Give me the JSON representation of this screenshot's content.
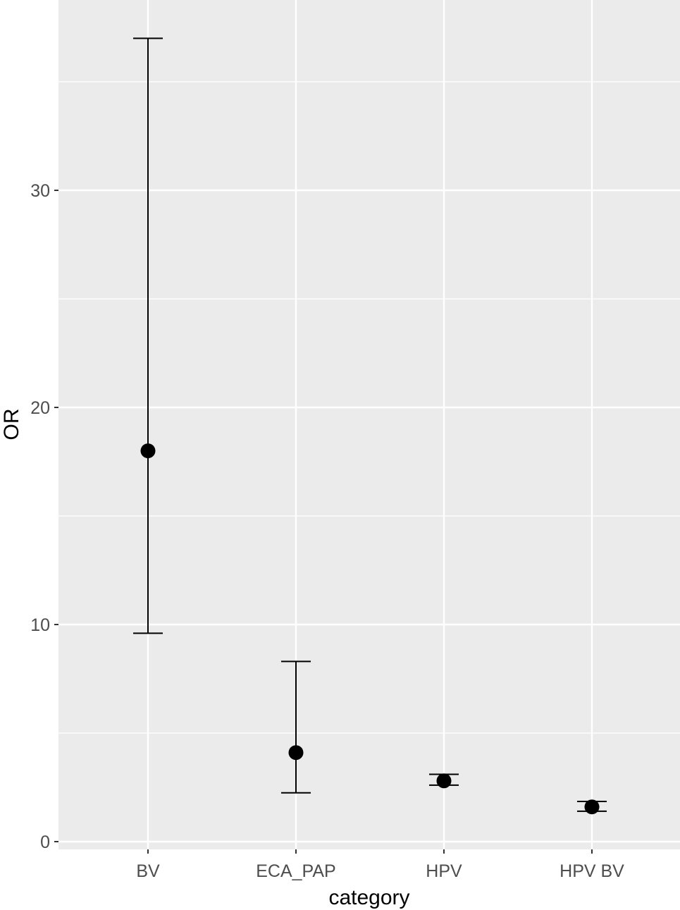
{
  "chart_data": {
    "type": "errorbar",
    "xlabel": "category",
    "ylabel": "OR",
    "categories": [
      "BV",
      "ECA_PAP",
      "HPV",
      "HPV BV"
    ],
    "points": [
      {
        "category": "BV",
        "estimate": 18.0,
        "lower": 9.6,
        "upper": 37.0
      },
      {
        "category": "ECA_PAP",
        "estimate": 4.1,
        "lower": 2.25,
        "upper": 8.3
      },
      {
        "category": "HPV",
        "estimate": 2.8,
        "lower": 2.6,
        "upper": 3.1
      },
      {
        "category": "HPV BV",
        "estimate": 1.6,
        "lower": 1.4,
        "upper": 1.85
      }
    ],
    "y_ticks": [
      0,
      10,
      20,
      30
    ],
    "y_minor_ticks": [
      5,
      15,
      25,
      35
    ],
    "ylim": [
      -0.4,
      38.7
    ],
    "grid": true,
    "legend": "none",
    "colors": {
      "panel": "#ebebeb",
      "grid": "#ffffff",
      "marks": "#000000",
      "tick_text": "#4d4d4d"
    }
  }
}
